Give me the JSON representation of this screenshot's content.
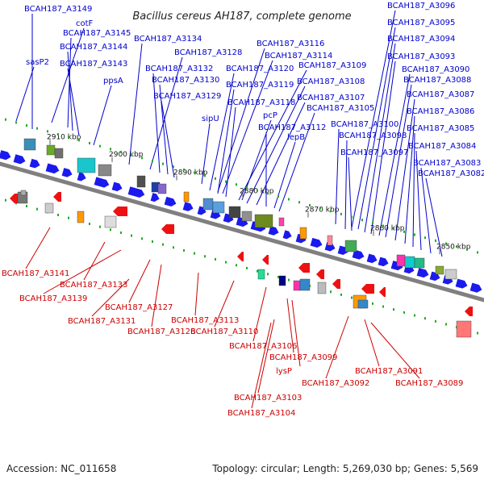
{
  "title": "Bacillus cereus AH187, complete genome",
  "footer": {
    "accession": "Accession: NC_011658",
    "summary": "Topology: circular; Length: 5,269,030 bp; Genes: 5,569"
  },
  "colors": {
    "forward_label": "#0000cc",
    "reverse_label": "#cc0000",
    "forward_arrow": "#1a1aee",
    "reverse_arrow": "#ee1111",
    "backbone": "#808080",
    "tick": "#22aa22"
  },
  "ticks": [
    "2910 kbp",
    "2900 kbp",
    "2890 kbp",
    "2880 kbp",
    "2870 kbp",
    "2860 kbp",
    "2850 kbp"
  ],
  "forward_labels": [
    "BCAH187_A3149",
    "cotF",
    "BCAH187_A3145",
    "BCAH187_A3144",
    "BCAH187_A3143",
    "sasP2",
    "ppsA",
    "BCAH187_A3134",
    "BCAH187_A3128",
    "BCAH187_A3132",
    "BCAH187_A3130",
    "BCAH187_A3129",
    "BCAH187_A3116",
    "BCAH187_A3114",
    "BCAH187_A3120",
    "BCAH187_A3119",
    "BCAH187_A3118",
    "sipU",
    "pcP",
    "BCAH187_A3112",
    "lepB",
    "BCAH187_A3109",
    "BCAH187_A3108",
    "BCAH187_A3107",
    "BCAH187_A3105",
    "BCAH187_A3100",
    "BCAH187_A3098",
    "BCAH187_A3097",
    "BCAH187_A3096",
    "BCAH187_A3095",
    "BCAH187_A3094",
    "BCAH187_A3093",
    "BCAH187_A3090",
    "BCAH187_A3088",
    "BCAH187_A3087",
    "BCAH187_A3086",
    "BCAH187_A3085",
    "BCAH187_A3084",
    "BCAH187_A3083",
    "BCAH187_A3082"
  ],
  "reverse_labels": [
    "BCAH187_A3141",
    "BCAH187_A3133",
    "BCAH187_A3139",
    "BCAH187_A3127",
    "BCAH187_A3131",
    "BCAH187_A3126",
    "BCAH187_A3113",
    "BCAH187_A3110",
    "BCAH187_A3106",
    "BCAH187_A3099",
    "lysP",
    "BCAH187_A3092",
    "BCAH187_A3091",
    "BCAH187_A3089",
    "BCAH187_A3103",
    "BCAH187_A3104"
  ]
}
